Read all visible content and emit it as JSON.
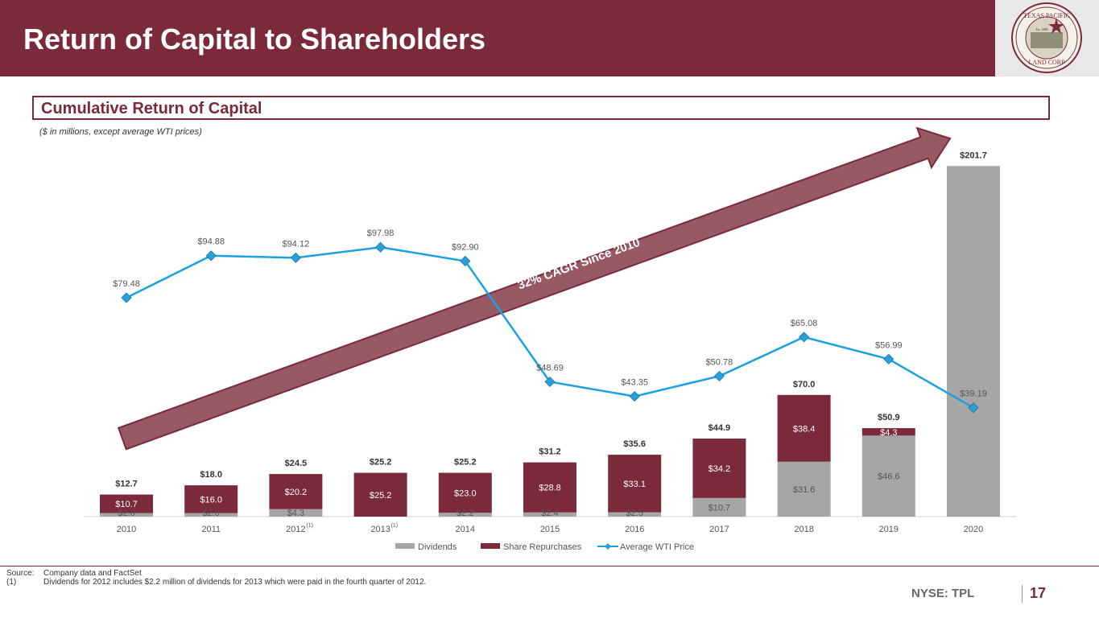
{
  "page": {
    "title": "Return of Capital to Shareholders",
    "section_title": "Cumulative Return of Capital",
    "units_note": "($ in millions, except average WTI prices)",
    "logo_text_top": "TEXAS PACIFIC",
    "logo_text_bottom": "LAND CORP",
    "logo_text_mid": "Est. 1888",
    "ticker": "NYSE: TPL",
    "page_number": "17",
    "footnote_source_label": "Source:",
    "footnote_source_text": "Company data and FactSet",
    "footnote_1_label": "(1)",
    "footnote_1_text": "Dividends for 2012 includes $2.2 million of dividends for 2013 which were paid in the fourth quarter of 2012."
  },
  "colors": {
    "brand": "#7b2a3b",
    "dividends": "#a6a6a6",
    "repurchases": "#7b2a3b",
    "wti_line": "#1ba1e2",
    "wti_marker": "#2b9fd9"
  },
  "chart_data": {
    "type": "bar",
    "stacked": true,
    "categories": [
      "2010",
      "2011",
      "2012",
      "2013",
      "2014",
      "2015",
      "2016",
      "2017",
      "2018",
      "2019",
      "2020"
    ],
    "category_superscripts": [
      "",
      "",
      "(1)",
      "(1)",
      "",
      "",
      "",
      "",
      "",
      "",
      ""
    ],
    "series": [
      {
        "name": "Dividends",
        "values": [
          2.0,
          2.0,
          4.3,
          0,
          2.2,
          2.4,
          2.5,
          10.7,
          31.6,
          46.6,
          201.7
        ],
        "labels": [
          "$2.0",
          "$2.0",
          "$4.3",
          "",
          "$2.2",
          "$2.4",
          "$2.5",
          "$10.7",
          "$31.6",
          "$46.6",
          ""
        ]
      },
      {
        "name": "Share Repurchases",
        "values": [
          10.7,
          16.0,
          20.2,
          25.2,
          23.0,
          28.8,
          33.1,
          34.2,
          38.4,
          4.3,
          0
        ],
        "labels": [
          "$10.7",
          "$16.0",
          "$20.2",
          "$25.2",
          "$23.0",
          "$28.8",
          "$33.1",
          "$34.2",
          "$38.4",
          "$4.3",
          ""
        ]
      }
    ],
    "totals": [
      12.7,
      18.0,
      24.5,
      25.2,
      25.2,
      31.2,
      35.6,
      44.9,
      70.0,
      50.9,
      201.7
    ],
    "total_labels": [
      "$12.7",
      "$18.0",
      "$24.5",
      "$25.2",
      "$25.2",
      "$31.2",
      "$35.6",
      "$44.9",
      "$70.0",
      "$50.9",
      "$201.7"
    ],
    "line_series": {
      "name": "Average WTI Price",
      "values": [
        79.48,
        94.88,
        94.12,
        97.98,
        92.9,
        48.69,
        43.35,
        50.78,
        65.08,
        56.99,
        39.19
      ],
      "labels": [
        "$79.48",
        "$94.88",
        "$94.12",
        "$97.98",
        "$92.90",
        "$48.69",
        "$43.35",
        "$50.78",
        "$65.08",
        "$56.99",
        "$39.19"
      ]
    },
    "arrow_annotation": "32% CAGR Since 2010",
    "legend": [
      "Dividends",
      "Share Repurchases",
      "Average WTI Price"
    ],
    "legend_position": "bottom",
    "grid": false
  }
}
